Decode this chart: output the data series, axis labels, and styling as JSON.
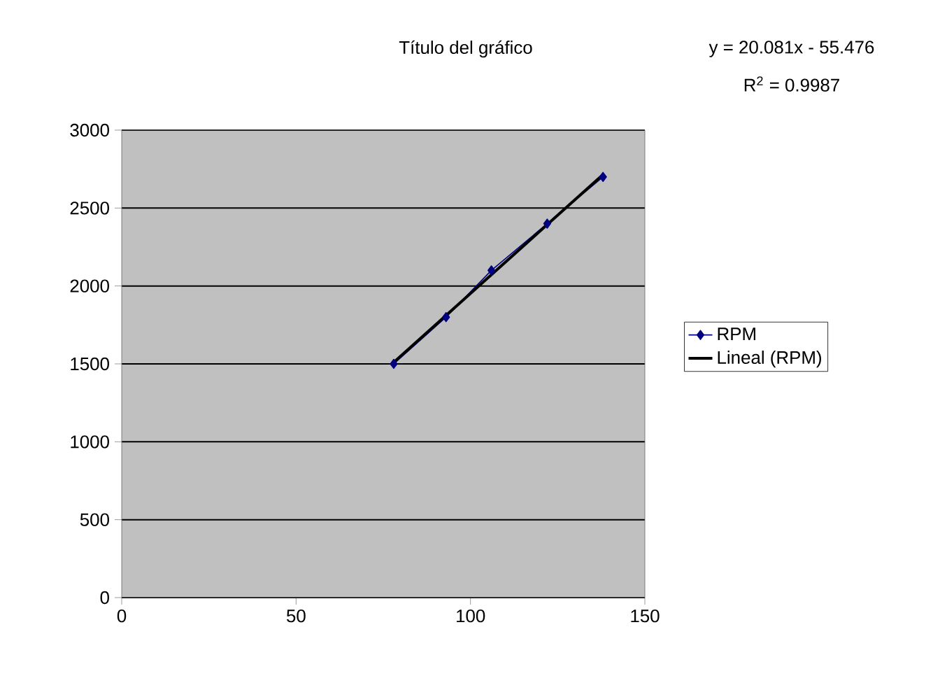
{
  "chart_data": {
    "type": "line",
    "title": "Título del gráfico",
    "annotations": [
      "y = 20.081x - 55.476",
      "R$^{2}$ = 0.9987"
    ],
    "series": [
      {
        "name": "RPM",
        "type": "line",
        "color": "#000080",
        "marker": "diamond",
        "x": [
          78,
          93,
          106,
          122,
          138
        ],
        "values": [
          1500,
          1800,
          2100,
          2400,
          2700
        ]
      },
      {
        "name": "Lineal (RPM)",
        "type": "line",
        "color": "#000000",
        "marker": "none",
        "x": [
          78,
          138
        ],
        "values": [
          1510,
          2715
        ]
      }
    ],
    "xlim": [
      0,
      150
    ],
    "xticks": [
      0,
      50,
      100,
      150
    ],
    "ylim": [
      0,
      3000
    ],
    "yticks": [
      0,
      500,
      1000,
      1500,
      2000,
      2500,
      3000
    ],
    "grid": "y",
    "legend": "right"
  }
}
